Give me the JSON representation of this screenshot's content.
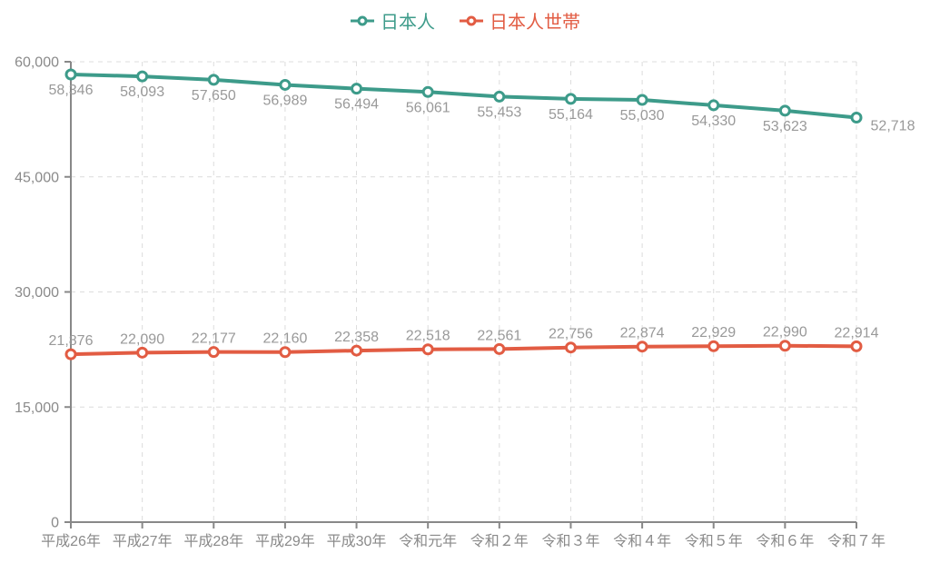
{
  "chart_data": {
    "type": "line",
    "title": "",
    "xlabel": "",
    "ylabel": "",
    "categories": [
      "平成26年",
      "平成27年",
      "平成28年",
      "平成29年",
      "平成30年",
      "令和元年",
      "令和２年",
      "令和３年",
      "令和４年",
      "令和５年",
      "令和６年",
      "令和７年"
    ],
    "series": [
      {
        "name": "日本人",
        "color": "#3d9b8a",
        "values": [
          58346,
          58093,
          57650,
          56989,
          56494,
          56061,
          55453,
          55164,
          55030,
          54330,
          53623,
          52718
        ],
        "labels": [
          "58,346",
          "58,093",
          "57,650",
          "56,989",
          "56,494",
          "56,061",
          "55,453",
          "55,164",
          "55,030",
          "54,330",
          "53,623",
          "52,718"
        ],
        "label_position": "below"
      },
      {
        "name": "日本人世帯",
        "color": "#e25c43",
        "values": [
          21876,
          22090,
          22177,
          22160,
          22358,
          22518,
          22561,
          22756,
          22874,
          22929,
          22990,
          22914
        ],
        "labels": [
          "21,876",
          "22,090",
          "22,177",
          "22,160",
          "22,358",
          "22,518",
          "22,561",
          "22,756",
          "22,874",
          "22,929",
          "22,990",
          "22,914"
        ],
        "label_position": "above"
      }
    ],
    "ylim": [
      0,
      60000
    ],
    "ytick_interval": 15000,
    "ytick_labels": [
      "0",
      "15,000",
      "30,000",
      "45,000",
      "60,000"
    ],
    "grid": true,
    "grid_style": "dashed",
    "legend_position": "top",
    "axis_color": "#888888",
    "grid_color": "#dcdcdc",
    "data_label_color": "#999999",
    "axis_label_color": "#8a8a8a"
  }
}
